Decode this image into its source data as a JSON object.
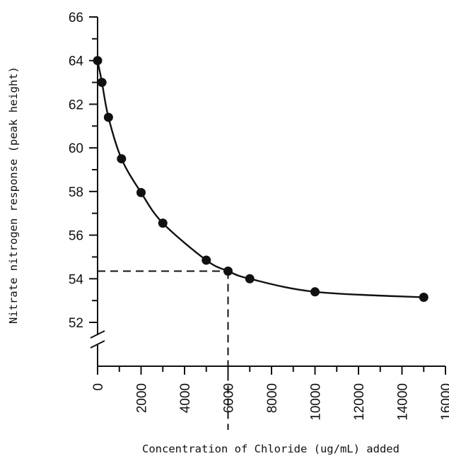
{
  "chart_data": {
    "type": "scatter",
    "title": "",
    "xlabel": "Concentration of Chloride (ug/mL) added",
    "ylabel": "Nitrate nitrogen response (peak height)",
    "xlim": [
      0,
      16000
    ],
    "ylim": [
      52,
      66
    ],
    "x_ticks": [
      "0",
      "2000",
      "4000",
      "6000",
      "8000",
      "10000",
      "12000",
      "14000",
      "16000"
    ],
    "y_ticks": [
      "52",
      "54",
      "56",
      "58",
      "60",
      "62",
      "64",
      "66"
    ],
    "y_axis_break": true,
    "series": [
      {
        "points": [
          {
            "x": 0,
            "y": 64.0
          },
          {
            "x": 200,
            "y": 63.0
          },
          {
            "x": 500,
            "y": 61.4
          },
          {
            "x": 1100,
            "y": 59.5
          },
          {
            "x": 2000,
            "y": 57.95
          },
          {
            "x": 3000,
            "y": 56.55
          },
          {
            "x": 5000,
            "y": 54.85
          },
          {
            "x": 6000,
            "y": 54.35
          },
          {
            "x": 7000,
            "y": 54.0
          },
          {
            "x": 10000,
            "y": 53.4
          },
          {
            "x": 15000,
            "y": 53.15
          }
        ]
      }
    ],
    "fit_curve": true,
    "reference_lines": [
      {
        "x": 6000,
        "y": 54.35,
        "style": "dashed"
      }
    ]
  }
}
